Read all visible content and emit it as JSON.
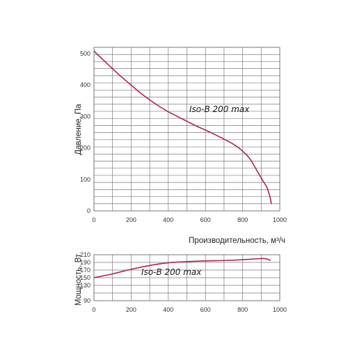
{
  "chart_data": [
    {
      "type": "line",
      "ylabel": "Давление, Па",
      "xlabel": "Производительность, м³/ч",
      "xlim": [
        0,
        1000
      ],
      "ylim": [
        0,
        520
      ],
      "x_ticks": [
        0,
        200,
        400,
        600,
        800,
        1000
      ],
      "y_ticks": [
        0,
        100,
        200,
        300,
        400,
        500
      ],
      "grid": true,
      "color": "#b0205a",
      "annotation": "Iso-B 200 max",
      "series": [
        {
          "x": [
            0,
            50,
            100,
            150,
            200,
            250,
            300,
            350,
            400,
            450,
            500,
            550,
            600,
            650,
            700,
            750,
            800,
            840,
            880,
            910,
            930,
            945,
            955
          ],
          "y": [
            508,
            480,
            452,
            425,
            400,
            375,
            353,
            333,
            315,
            300,
            285,
            270,
            257,
            243,
            228,
            212,
            190,
            165,
            125,
            95,
            75,
            50,
            22
          ]
        }
      ]
    },
    {
      "type": "line",
      "ylabel": "Мощность, Вт",
      "xlim": [
        0,
        1000
      ],
      "ylim": [
        90,
        210
      ],
      "x_ticks": [
        0,
        200,
        400,
        600,
        800,
        1000
      ],
      "y_ticks": [
        90,
        130,
        150,
        170,
        190,
        210
      ],
      "grid": true,
      "color": "#b0205a",
      "annotation": "Iso-B 200 max",
      "series": [
        {
          "x": [
            0,
            100,
            200,
            300,
            400,
            500,
            600,
            700,
            800,
            900,
            930,
            950
          ],
          "y": [
            150,
            160,
            172,
            182,
            189,
            192,
            194,
            195,
            197,
            200,
            199,
            195
          ]
        }
      ]
    }
  ]
}
